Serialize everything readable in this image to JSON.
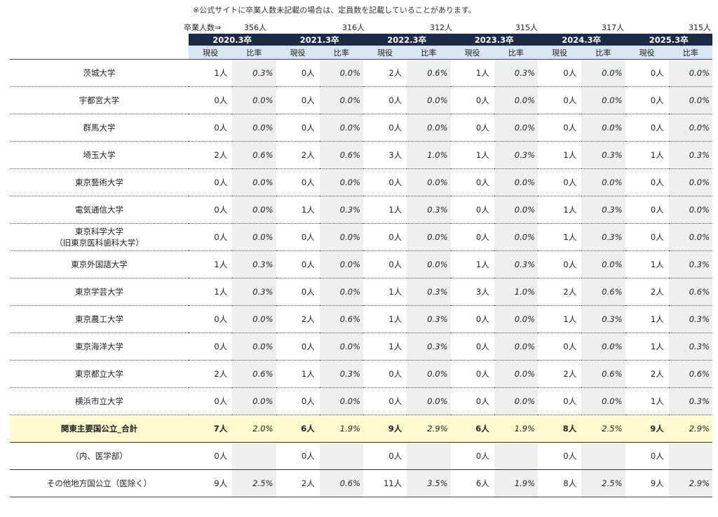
{
  "note": "※公式サイトに卒業人数未記載の場合は、定員数を記載していることがあります。",
  "graduates_label": "卒業人数⇒",
  "graduates": [
    "356人",
    "316人",
    "312人",
    "315人",
    "317人",
    "315人"
  ],
  "years": [
    "2020.3卒",
    "2021.3卒",
    "2022.3卒",
    "2023.3卒",
    "2024.3卒",
    "2025.3卒"
  ],
  "sub_headers": {
    "count": "現役",
    "ratio": "比率"
  },
  "rows": [
    {
      "name": "茨城大学",
      "vals": [
        "1人",
        "0.3%",
        "0人",
        "0.0%",
        "2人",
        "0.6%",
        "1人",
        "0.3%",
        "0人",
        "0.0%",
        "0人",
        "0.0%"
      ]
    },
    {
      "name": "宇都宮大学",
      "vals": [
        "0人",
        "0.0%",
        "0人",
        "0.0%",
        "0人",
        "0.0%",
        "0人",
        "0.0%",
        "0人",
        "0.0%",
        "0人",
        "0.0%"
      ]
    },
    {
      "name": "群馬大学",
      "vals": [
        "0人",
        "0.0%",
        "0人",
        "0.0%",
        "0人",
        "0.0%",
        "0人",
        "0.0%",
        "0人",
        "0.0%",
        "0人",
        "0.0%"
      ]
    },
    {
      "name": "埼玉大学",
      "vals": [
        "2人",
        "0.6%",
        "2人",
        "0.6%",
        "3人",
        "1.0%",
        "1人",
        "0.3%",
        "1人",
        "0.3%",
        "1人",
        "0.3%"
      ]
    },
    {
      "name": "東京藝術大学",
      "vals": [
        "0人",
        "0.0%",
        "0人",
        "0.0%",
        "0人",
        "0.0%",
        "0人",
        "0.0%",
        "0人",
        "0.0%",
        "0人",
        "0.0%"
      ]
    },
    {
      "name": "電気通信大学",
      "vals": [
        "0人",
        "0.0%",
        "1人",
        "0.3%",
        "1人",
        "0.3%",
        "0人",
        "0.0%",
        "1人",
        "0.3%",
        "0人",
        "0.0%"
      ]
    },
    {
      "name": "東京科学大学",
      "name2": "（旧東京医科歯科大学）",
      "vals": [
        "0人",
        "0.0%",
        "0人",
        "0.0%",
        "0人",
        "0.0%",
        "0人",
        "0.0%",
        "1人",
        "0.3%",
        "0人",
        "0.0%"
      ]
    },
    {
      "name": "東京外国語大学",
      "vals": [
        "1人",
        "0.3%",
        "0人",
        "0.0%",
        "0人",
        "0.0%",
        "1人",
        "0.3%",
        "0人",
        "0.0%",
        "1人",
        "0.3%"
      ]
    },
    {
      "name": "東京学芸大学",
      "vals": [
        "1人",
        "0.3%",
        "0人",
        "0.0%",
        "1人",
        "0.3%",
        "3人",
        "1.0%",
        "2人",
        "0.6%",
        "2人",
        "0.6%"
      ]
    },
    {
      "name": "東京農工大学",
      "vals": [
        "0人",
        "0.0%",
        "2人",
        "0.6%",
        "1人",
        "0.3%",
        "0人",
        "0.0%",
        "1人",
        "0.3%",
        "1人",
        "0.3%"
      ]
    },
    {
      "name": "東京海洋大学",
      "vals": [
        "0人",
        "0.0%",
        "0人",
        "0.0%",
        "1人",
        "0.3%",
        "0人",
        "0.0%",
        "0人",
        "0.0%",
        "1人",
        "0.3%"
      ]
    },
    {
      "name": "東京都立大学",
      "vals": [
        "2人",
        "0.6%",
        "1人",
        "0.3%",
        "0人",
        "0.0%",
        "0人",
        "0.0%",
        "2人",
        "0.6%",
        "2人",
        "0.6%"
      ]
    },
    {
      "name": "横浜市立大学",
      "vals": [
        "0人",
        "0.0%",
        "0人",
        "0.0%",
        "0人",
        "0.0%",
        "0人",
        "0.0%",
        "0人",
        "0.0%",
        "1人",
        "0.3%"
      ]
    },
    {
      "name": "関東主要国公立_合計",
      "kind": "total",
      "vals": [
        "7人",
        "2.0%",
        "6人",
        "1.9%",
        "9人",
        "2.9%",
        "6人",
        "1.9%",
        "8人",
        "2.5%",
        "9人",
        "2.9%"
      ]
    },
    {
      "name": "（内、医学部）",
      "kind": "sub2",
      "vals": [
        "0人",
        "",
        "0人",
        "",
        "0人",
        "",
        "0人",
        "",
        "0人",
        "",
        "0人",
        ""
      ]
    },
    {
      "name": "その他地方国公立（医除く）",
      "kind": "last",
      "vals": [
        "9人",
        "2.5%",
        "2人",
        "0.6%",
        "11人",
        "3.5%",
        "6人",
        "1.9%",
        "8人",
        "2.5%",
        "9人",
        "2.9%"
      ]
    }
  ]
}
